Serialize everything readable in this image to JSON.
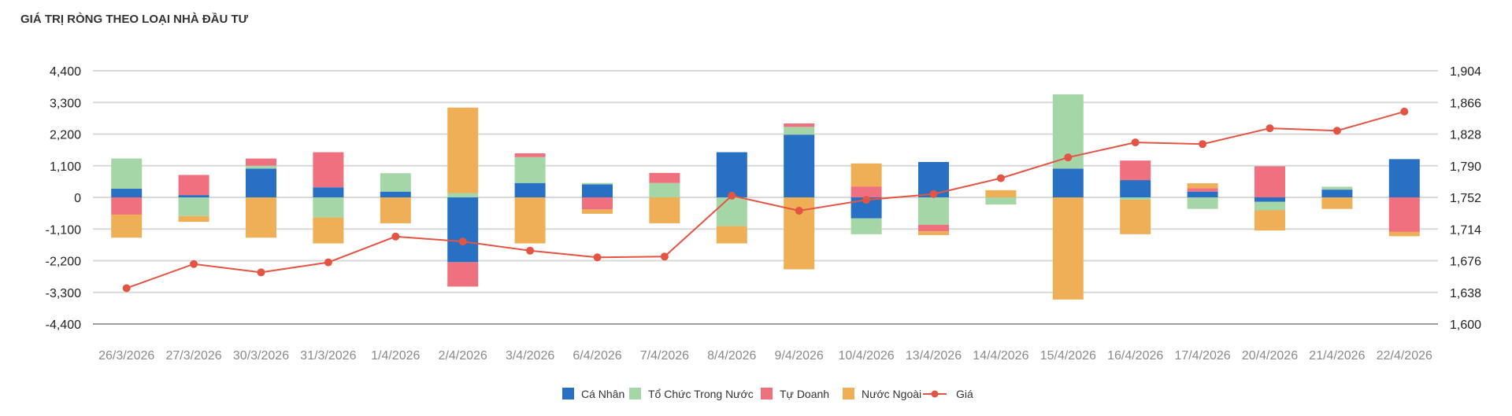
{
  "chart_data": {
    "type": "bar",
    "title": "GIÁ TRỊ RÒNG THEO LOẠI NHÀ ĐẦU TƯ",
    "stacked": true,
    "categories": [
      "26/3/2026",
      "27/3/2026",
      "30/3/2026",
      "31/3/2026",
      "1/4/2026",
      "2/4/2026",
      "3/4/2026",
      "6/4/2026",
      "7/4/2026",
      "8/4/2026",
      "9/4/2026",
      "10/4/2026",
      "13/4/2026",
      "14/4/2026",
      "15/4/2026",
      "16/4/2026",
      "17/4/2026",
      "20/4/2026",
      "21/4/2026",
      "22/4/2026"
    ],
    "y_left": {
      "ylim": [
        -4400,
        4400
      ],
      "ticks": [
        "4,400",
        "3,300",
        "2,200",
        "1,100",
        "0",
        "-1,100",
        "-2,200",
        "-3,300",
        "-4,400"
      ]
    },
    "y_right": {
      "ylim": [
        1600,
        1904
      ],
      "ticks": [
        "1,904",
        "1,866",
        "1,828",
        "1,790",
        "1,752",
        "1,714",
        "1,676",
        "1,638",
        "1,600"
      ]
    },
    "grid": true,
    "legend_position": "bottom",
    "series": [
      {
        "name": "Cá Nhân",
        "color": "#2870c4",
        "axis": "left",
        "kind": "bar",
        "values": [
          300,
          80,
          1000,
          350,
          200,
          -2250,
          500,
          450,
          0,
          1570,
          2180,
          -730,
          1230,
          0,
          1000,
          600,
          200,
          -150,
          270,
          1330
        ]
      },
      {
        "name": "Tổ Chức Trong Nước",
        "color": "#a5d6a7",
        "axis": "left",
        "kind": "bar",
        "values": [
          1050,
          -650,
          100,
          -700,
          640,
          150,
          900,
          50,
          500,
          -1000,
          270,
          -550,
          -950,
          -250,
          2580,
          -80,
          -400,
          -300,
          100,
          0
        ]
      },
      {
        "name": "Tự Doanh",
        "color": "#ef717f",
        "axis": "left",
        "kind": "bar",
        "values": [
          -600,
          700,
          250,
          1220,
          0,
          -850,
          130,
          -420,
          350,
          0,
          120,
          380,
          -230,
          0,
          0,
          680,
          120,
          1080,
          0,
          -1200
        ]
      },
      {
        "name": "Nước Ngoài",
        "color": "#eeaf56",
        "axis": "left",
        "kind": "bar",
        "values": [
          -800,
          -200,
          -1400,
          -900,
          -900,
          2970,
          -1600,
          -150,
          -900,
          -600,
          -2500,
          800,
          -130,
          250,
          -3550,
          -1200,
          170,
          -700,
          -400,
          -150
        ]
      },
      {
        "name": "Giá",
        "color": "#e45443",
        "axis": "right",
        "kind": "line",
        "values": [
          1643,
          1672,
          1662,
          1674,
          1705,
          1699,
          1688,
          1680,
          1681,
          1754,
          1736,
          1749,
          1756,
          1775,
          1800,
          1818,
          1816,
          1835,
          1832,
          1855
        ]
      }
    ]
  }
}
